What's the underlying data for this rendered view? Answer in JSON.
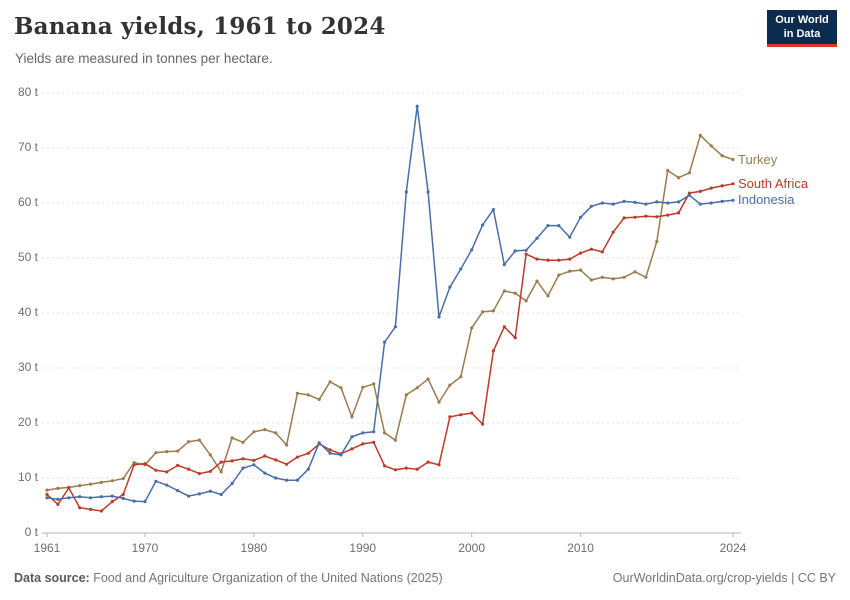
{
  "header": {
    "title": "Banana yields, 1961 to 2024",
    "subtitle": "Yields are measured in tonnes per hectare.",
    "logo_line1": "Our World",
    "logo_line2": "in Data"
  },
  "footer": {
    "source_label": "Data source:",
    "source_text": " Food and Agriculture Organization of the United Nations (2025)",
    "link_text": "OurWorldinData.org/crop-yields | CC BY"
  },
  "chart_data": {
    "type": "line",
    "title": "Banana yields, 1961 to 2024",
    "ylabel": "tonnes per hectare",
    "xlabel": "",
    "grid": "horizontal-dashed",
    "legend_position": "right-end-labels",
    "ylim": [
      0,
      80
    ],
    "yticks": [
      {
        "value": 0,
        "label": "0 t"
      },
      {
        "value": 10,
        "label": "10 t"
      },
      {
        "value": 20,
        "label": "20 t"
      },
      {
        "value": 30,
        "label": "30 t"
      },
      {
        "value": 40,
        "label": "40 t"
      },
      {
        "value": 50,
        "label": "50 t"
      },
      {
        "value": 60,
        "label": "60 t"
      },
      {
        "value": 70,
        "label": "70 t"
      },
      {
        "value": 80,
        "label": "80 t"
      }
    ],
    "xticks": [
      {
        "value": 1961,
        "label": "1961"
      },
      {
        "value": 1970,
        "label": "1970"
      },
      {
        "value": 1980,
        "label": "1980"
      },
      {
        "value": 1990,
        "label": "1990"
      },
      {
        "value": 2000,
        "label": "2000"
      },
      {
        "value": 2010,
        "label": "2010"
      },
      {
        "value": 2024,
        "label": "2024"
      }
    ],
    "x": [
      1961,
      1962,
      1963,
      1964,
      1965,
      1966,
      1967,
      1968,
      1969,
      1970,
      1971,
      1972,
      1973,
      1974,
      1975,
      1976,
      1977,
      1978,
      1979,
      1980,
      1981,
      1982,
      1983,
      1984,
      1985,
      1986,
      1987,
      1988,
      1989,
      1990,
      1991,
      1992,
      1993,
      1994,
      1995,
      1996,
      1997,
      1998,
      1999,
      2000,
      2001,
      2002,
      2003,
      2004,
      2005,
      2006,
      2007,
      2008,
      2009,
      2010,
      2011,
      2012,
      2013,
      2014,
      2015,
      2016,
      2017,
      2018,
      2019,
      2020,
      2021,
      2022,
      2023,
      2024
    ],
    "series": [
      {
        "name": "Turkey",
        "color": "#9A7C4E",
        "values": [
          7.8,
          8.1,
          8.3,
          8.6,
          8.9,
          9.2,
          9.5,
          9.9,
          12.8,
          12.4,
          14.6,
          14.8,
          14.9,
          16.6,
          16.9,
          14.2,
          11.1,
          17.3,
          16.5,
          18.4,
          18.8,
          18.2,
          16.0,
          25.4,
          25.1,
          24.3,
          27.5,
          26.4,
          21.1,
          26.5,
          27.1,
          18.2,
          16.9,
          25.1,
          26.4,
          28.0,
          23.8,
          26.9,
          28.4,
          37.3,
          40.2,
          40.4,
          44.0,
          43.6,
          42.2,
          45.8,
          43.1,
          46.9,
          47.6,
          47.8,
          46.0,
          46.5,
          46.2,
          46.5,
          47.5,
          46.5,
          53.0,
          65.9,
          64.6,
          65.5,
          72.3,
          70.4,
          68.6,
          67.9
        ]
      },
      {
        "name": "South Africa",
        "color": "#BE3A2A",
        "values": [
          7.0,
          5.2,
          8.2,
          4.6,
          4.3,
          4.0,
          5.7,
          7.0,
          12.4,
          12.6,
          11.4,
          11.1,
          12.3,
          11.6,
          10.8,
          11.2,
          12.9,
          13.1,
          13.5,
          13.2,
          14.0,
          13.3,
          12.5,
          13.8,
          14.5,
          16.2,
          15.1,
          14.4,
          15.3,
          16.2,
          16.5,
          12.2,
          11.5,
          11.8,
          11.6,
          12.9,
          12.4,
          21.1,
          21.5,
          21.8,
          19.8,
          33.1,
          37.5,
          35.5,
          50.7,
          49.8,
          49.6,
          49.6,
          49.8,
          50.9,
          51.6,
          51.1,
          54.7,
          57.3,
          57.4,
          57.6,
          57.5,
          57.8,
          58.2,
          61.8,
          62.1,
          62.7,
          63.1,
          63.5
        ]
      },
      {
        "name": "Indonesia",
        "color": "#4A6EA8",
        "values": [
          6.4,
          6.1,
          6.4,
          6.6,
          6.4,
          6.6,
          6.7,
          6.3,
          5.8,
          5.7,
          9.4,
          8.7,
          7.7,
          6.7,
          7.1,
          7.6,
          7.0,
          9.0,
          11.8,
          12.4,
          10.9,
          10.0,
          9.6,
          9.6,
          11.6,
          16.4,
          14.5,
          14.2,
          17.5,
          18.2,
          18.4,
          34.7,
          37.5,
          62.0,
          77.6,
          62.0,
          39.3,
          44.7,
          48.0,
          51.5,
          56.0,
          58.8,
          48.8,
          51.3,
          51.4,
          53.6,
          55.9,
          55.9,
          53.8,
          57.4,
          59.4,
          60.0,
          59.8,
          60.3,
          60.1,
          59.8,
          60.2,
          60.0,
          60.2,
          61.4,
          59.8,
          60.0,
          60.3,
          60.5
        ]
      }
    ]
  }
}
